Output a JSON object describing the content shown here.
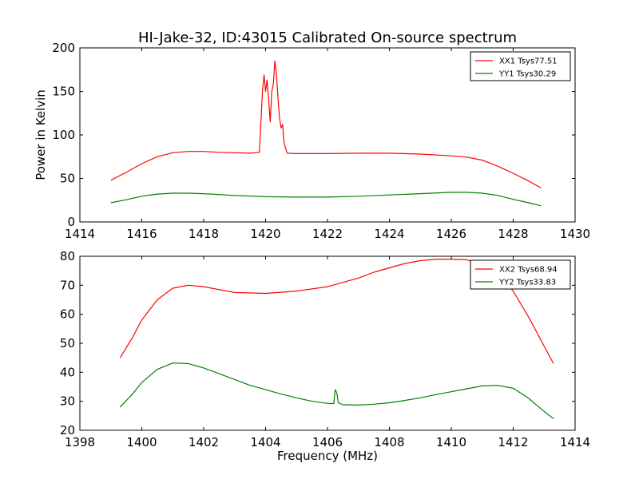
{
  "figure": {
    "title": "HI-Jake-32, ID:43015 Calibrated On-source spectrum",
    "ylabel": "Power in Kelvin",
    "xlabel": "Frequency (MHz)"
  },
  "colors": {
    "series1": "#ff0000",
    "series2": "#008000",
    "axes": "#000000"
  },
  "chart_data": [
    {
      "type": "line",
      "xlim": [
        1414,
        1430
      ],
      "ylim": [
        0,
        200
      ],
      "xticks": [
        1414,
        1416,
        1418,
        1420,
        1422,
        1424,
        1426,
        1428,
        1430
      ],
      "yticks": [
        0,
        50,
        100,
        150,
        200
      ],
      "legend_placement": "top-right",
      "series": [
        {
          "name": "XX1 Tsys77.51",
          "color": "#ff0000",
          "points": [
            [
              1415.0,
              48
            ],
            [
              1415.5,
              57
            ],
            [
              1416.0,
              67
            ],
            [
              1416.5,
              75
            ],
            [
              1417.0,
              79.5
            ],
            [
              1417.5,
              81
            ],
            [
              1418.0,
              81
            ],
            [
              1418.5,
              80
            ],
            [
              1419.0,
              79.5
            ],
            [
              1419.5,
              79
            ],
            [
              1419.8,
              80
            ],
            [
              1419.9,
              150
            ],
            [
              1419.95,
              169
            ],
            [
              1420.0,
              150
            ],
            [
              1420.05,
              163
            ],
            [
              1420.1,
              140
            ],
            [
              1420.15,
              115
            ],
            [
              1420.2,
              150
            ],
            [
              1420.25,
              158
            ],
            [
              1420.3,
              185
            ],
            [
              1420.35,
              170
            ],
            [
              1420.4,
              143
            ],
            [
              1420.45,
              120
            ],
            [
              1420.5,
              108
            ],
            [
              1420.55,
              112
            ],
            [
              1420.6,
              90
            ],
            [
              1420.7,
              79
            ],
            [
              1421.0,
              78.5
            ],
            [
              1422.0,
              78.5
            ],
            [
              1423.0,
              79
            ],
            [
              1424.0,
              79
            ],
            [
              1425.0,
              78
            ],
            [
              1426.0,
              76
            ],
            [
              1426.5,
              74.5
            ],
            [
              1427.0,
              71
            ],
            [
              1427.5,
              64
            ],
            [
              1428.0,
              56
            ],
            [
              1428.5,
              47
            ],
            [
              1428.9,
              39
            ]
          ]
        },
        {
          "name": "YY1 Tsys30.29",
          "color": "#008000",
          "points": [
            [
              1415.0,
              22
            ],
            [
              1415.5,
              25.5
            ],
            [
              1416.0,
              29.5
            ],
            [
              1416.5,
              32
            ],
            [
              1417.0,
              33
            ],
            [
              1417.5,
              33
            ],
            [
              1418.0,
              32.5
            ],
            [
              1419.0,
              30.5
            ],
            [
              1420.0,
              29
            ],
            [
              1421.0,
              28.5
            ],
            [
              1422.0,
              28.5
            ],
            [
              1423.0,
              29.5
            ],
            [
              1424.0,
              31
            ],
            [
              1425.0,
              32.5
            ],
            [
              1426.0,
              34
            ],
            [
              1426.5,
              34
            ],
            [
              1427.0,
              33
            ],
            [
              1427.5,
              30.5
            ],
            [
              1428.0,
              26
            ],
            [
              1428.5,
              22
            ],
            [
              1428.9,
              18.5
            ]
          ]
        }
      ]
    },
    {
      "type": "line",
      "xlim": [
        1398,
        1414
      ],
      "ylim": [
        20,
        80
      ],
      "xticks": [
        1398,
        1400,
        1402,
        1404,
        1406,
        1408,
        1410,
        1412,
        1414
      ],
      "yticks": [
        20,
        30,
        40,
        50,
        60,
        70,
        80
      ],
      "legend_placement": "top-right",
      "series": [
        {
          "name": "XX2 Tsys68.94",
          "color": "#ff0000",
          "points": [
            [
              1399.3,
              45
            ],
            [
              1399.7,
              52
            ],
            [
              1400.0,
              58
            ],
            [
              1400.5,
              65
            ],
            [
              1401.0,
              69
            ],
            [
              1401.5,
              70
            ],
            [
              1402.0,
              69.5
            ],
            [
              1402.5,
              68.5
            ],
            [
              1403.0,
              67.5
            ],
            [
              1404.0,
              67.2
            ],
            [
              1405.0,
              68
            ],
            [
              1406.0,
              69.5
            ],
            [
              1406.5,
              71
            ],
            [
              1407.0,
              72.5
            ],
            [
              1407.5,
              74.5
            ],
            [
              1408.0,
              76
            ],
            [
              1408.5,
              77.5
            ],
            [
              1409.0,
              78.5
            ],
            [
              1409.5,
              79
            ],
            [
              1410.0,
              79
            ],
            [
              1410.5,
              78.8
            ],
            [
              1411.0,
              77
            ],
            [
              1411.5,
              74
            ],
            [
              1412.0,
              68
            ],
            [
              1412.5,
              59
            ],
            [
              1413.0,
              49
            ],
            [
              1413.3,
              43
            ]
          ]
        },
        {
          "name": "YY2 Tsys33.83",
          "color": "#008000",
          "points": [
            [
              1399.3,
              28
            ],
            [
              1399.7,
              32.5
            ],
            [
              1400.0,
              36.5
            ],
            [
              1400.5,
              41
            ],
            [
              1401.0,
              43.2
            ],
            [
              1401.5,
              43
            ],
            [
              1402.0,
              41.5
            ],
            [
              1402.5,
              39.5
            ],
            [
              1403.0,
              37.5
            ],
            [
              1403.5,
              35.5
            ],
            [
              1404.0,
              34
            ],
            [
              1404.5,
              32.5
            ],
            [
              1405.0,
              31.2
            ],
            [
              1405.5,
              30
            ],
            [
              1406.0,
              29.3
            ],
            [
              1406.2,
              29.2
            ],
            [
              1406.25,
              34
            ],
            [
              1406.3,
              33
            ],
            [
              1406.35,
              29.5
            ],
            [
              1406.5,
              28.8
            ],
            [
              1407.0,
              28.7
            ],
            [
              1407.5,
              29
            ],
            [
              1408.0,
              29.5
            ],
            [
              1408.5,
              30.3
            ],
            [
              1409.0,
              31.2
            ],
            [
              1409.5,
              32.3
            ],
            [
              1410.0,
              33.3
            ],
            [
              1410.5,
              34.3
            ],
            [
              1411.0,
              35.3
            ],
            [
              1411.5,
              35.5
            ],
            [
              1412.0,
              34.5
            ],
            [
              1412.5,
              31
            ],
            [
              1413.0,
              26.5
            ],
            [
              1413.3,
              24
            ]
          ]
        }
      ]
    }
  ]
}
